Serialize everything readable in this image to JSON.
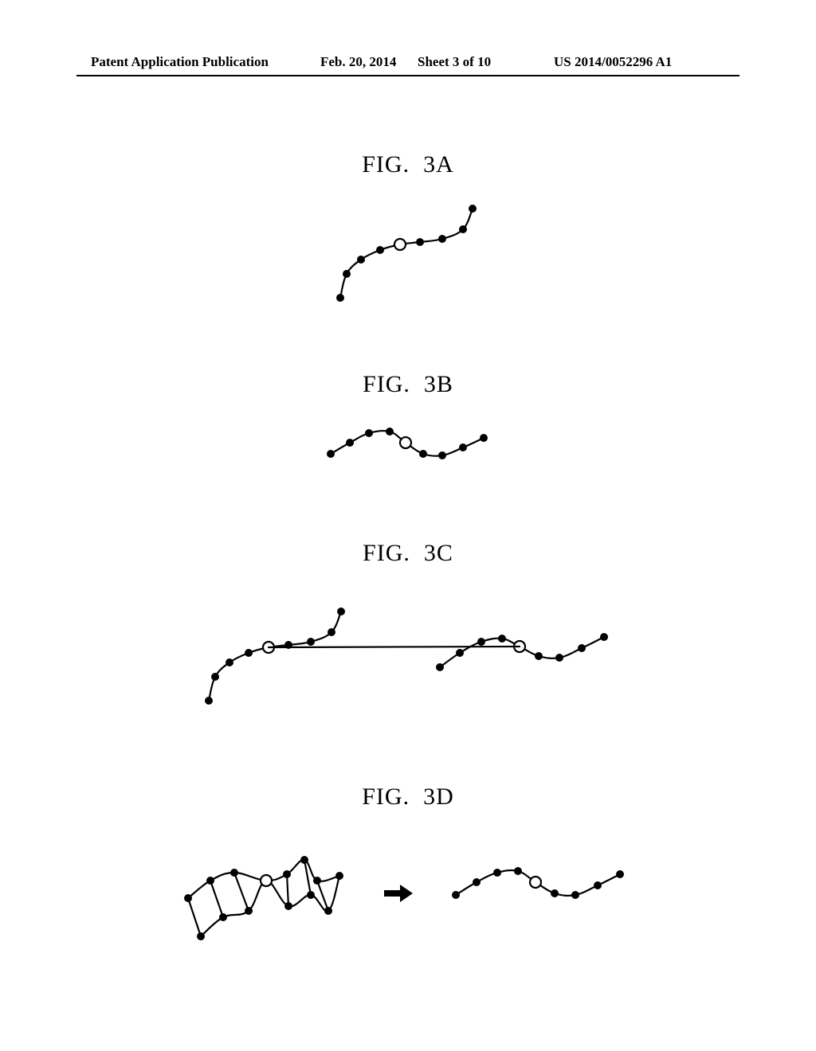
{
  "header": {
    "left": "Patent Application Publication",
    "date": "Feb. 20, 2014",
    "sheet": "Sheet 3 of 10",
    "pubno": "US 2014/0052296 A1"
  },
  "figs": {
    "a": {
      "label": "FIG.  3A"
    },
    "b": {
      "label": "FIG.  3B"
    },
    "c": {
      "label": "FIG.  3C"
    },
    "d": {
      "label": "FIG.  3D"
    }
  },
  "style": {
    "bg": "#ffffff",
    "stroke": "#000000",
    "fill_solid": "#000000",
    "fill_open": "#ffffff",
    "line_w": 2.2,
    "dot_r": 5,
    "open_r": 7,
    "open_stroke_w": 2.2,
    "label_fontsize": 30,
    "header_fontsize": 17,
    "arrow_w": 36,
    "arrow_h": 22
  },
  "curves": {
    "A": {
      "pts": [
        [
          30,
          130
        ],
        [
          38,
          100
        ],
        [
          56,
          82
        ],
        [
          80,
          70
        ],
        [
          105,
          63
        ],
        [
          130,
          60
        ],
        [
          158,
          56
        ],
        [
          184,
          44
        ],
        [
          196,
          18
        ]
      ],
      "open_idx": 4
    },
    "B": {
      "pts": [
        [
          18,
          48
        ],
        [
          42,
          34
        ],
        [
          66,
          22
        ],
        [
          92,
          20
        ],
        [
          112,
          34
        ],
        [
          134,
          48
        ],
        [
          158,
          50
        ],
        [
          184,
          40
        ],
        [
          210,
          28
        ]
      ],
      "open_idx": 4
    },
    "C_left": {
      "pts": [
        [
          30,
          140
        ],
        [
          38,
          110
        ],
        [
          56,
          92
        ],
        [
          80,
          80
        ],
        [
          105,
          73
        ],
        [
          130,
          70
        ],
        [
          158,
          66
        ],
        [
          184,
          54
        ],
        [
          196,
          28
        ]
      ],
      "open_idx": 4
    },
    "C_right": {
      "pts": [
        [
          320,
          98
        ],
        [
          345,
          80
        ],
        [
          372,
          66
        ],
        [
          398,
          62
        ],
        [
          420,
          72
        ],
        [
          444,
          84
        ],
        [
          470,
          86
        ],
        [
          498,
          74
        ],
        [
          526,
          60
        ]
      ],
      "open_idx": 4
    },
    "C_connector": {
      "from_open": "C_left",
      "to_open": "C_right"
    },
    "D_left_top": {
      "pts": [
        [
          24,
          68
        ],
        [
          52,
          46
        ],
        [
          82,
          36
        ],
        [
          122,
          46
        ],
        [
          148,
          38
        ],
        [
          170,
          20
        ],
        [
          186,
          46
        ],
        [
          214,
          40
        ]
      ],
      "open_idx": 3
    },
    "D_left_bot": {
      "pts": [
        [
          40,
          116
        ],
        [
          68,
          92
        ],
        [
          100,
          84
        ],
        [
          122,
          46
        ],
        [
          150,
          78
        ],
        [
          178,
          64
        ],
        [
          200,
          84
        ],
        [
          214,
          40
        ]
      ],
      "open_idx": 3
    },
    "D_zigs": [
      [
        [
          24,
          68
        ],
        [
          40,
          116
        ]
      ],
      [
        [
          52,
          46
        ],
        [
          68,
          92
        ]
      ],
      [
        [
          82,
          36
        ],
        [
          100,
          84
        ]
      ],
      [
        [
          148,
          38
        ],
        [
          150,
          78
        ]
      ],
      [
        [
          170,
          20
        ],
        [
          178,
          64
        ]
      ],
      [
        [
          186,
          46
        ],
        [
          200,
          84
        ]
      ]
    ],
    "D_right": {
      "pts": [
        [
          360,
          64
        ],
        [
          386,
          48
        ],
        [
          412,
          36
        ],
        [
          438,
          34
        ],
        [
          460,
          48
        ],
        [
          484,
          62
        ],
        [
          510,
          64
        ],
        [
          538,
          52
        ],
        [
          566,
          38
        ]
      ],
      "open_idx": 4
    }
  }
}
